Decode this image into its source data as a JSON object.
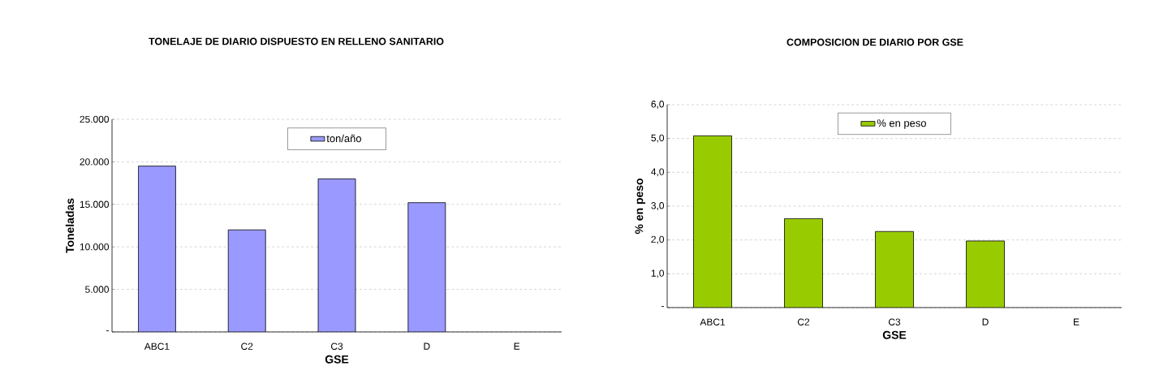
{
  "chart_data": [
    {
      "type": "bar",
      "title": "TONELAJE DE DIARIO DISPUESTO EN RELLENO SANITARIO",
      "xlabel": "GSE",
      "ylabel": "Toneladas",
      "categories": [
        "ABC1",
        "C2",
        "C3",
        "D",
        "E"
      ],
      "series": [
        {
          "name": "ton/año",
          "color": "#9999ff",
          "values": [
            19500,
            12000,
            18000,
            15200,
            null
          ]
        }
      ],
      "ylim": [
        0,
        25000
      ],
      "yticks": [
        {
          "value": 0,
          "label": "-"
        },
        {
          "value": 5000,
          "label": "5.000"
        },
        {
          "value": 10000,
          "label": "10.000"
        },
        {
          "value": 15000,
          "label": "15.000"
        },
        {
          "value": 20000,
          "label": "20.000"
        },
        {
          "value": 25000,
          "label": "25.000"
        }
      ],
      "grid": "y",
      "legend": "top"
    },
    {
      "type": "bar",
      "title": "COMPOSICION DE DIARIO POR GSE",
      "xlabel": "GSE",
      "ylabel": "% en peso",
      "categories": [
        "ABC1",
        "C2",
        "C3",
        "D",
        "E"
      ],
      "series": [
        {
          "name": "% en peso",
          "color": "#99cc00",
          "values": [
            5.08,
            2.63,
            2.25,
            1.97,
            null
          ]
        }
      ],
      "ylim": [
        0,
        6
      ],
      "yticks": [
        {
          "value": 0,
          "label": "-"
        },
        {
          "value": 1,
          "label": "1,0"
        },
        {
          "value": 2,
          "label": "2,0"
        },
        {
          "value": 3,
          "label": "3,0"
        },
        {
          "value": 4,
          "label": "4,0"
        },
        {
          "value": 5,
          "label": "5,0"
        },
        {
          "value": 6,
          "label": "6,0"
        }
      ],
      "grid": "y",
      "legend": "top"
    }
  ]
}
